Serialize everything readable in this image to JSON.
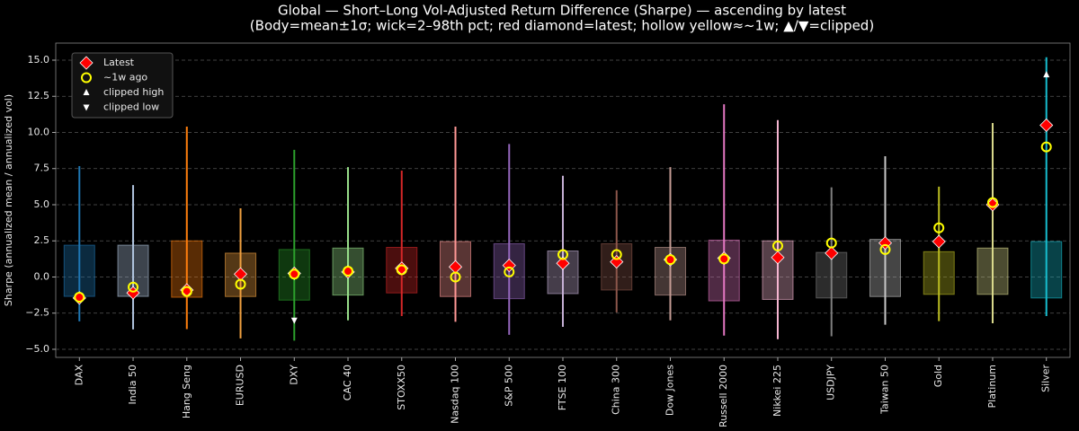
{
  "chart_data": {
    "type": "range_box",
    "title": "Global — Short–Long Vol-Adjusted Return Difference (Sharpe) — ascending by latest",
    "subtitle": "(Body=mean±1σ; wick=2–98th pct; red diamond=latest; hollow yellow≈~1w; ▲/▼=clipped)",
    "y_label": "Sharpe (annualized mean / annualized vol)",
    "categories": [
      "DAX",
      "India 50",
      "Hang Seng",
      "EURUSD",
      "DXY",
      "CAC 40",
      "STOXX50",
      "Nasdaq 100",
      "S&P 500",
      "FTSE 100",
      "China 300",
      "Dow Jones",
      "Russell 2000",
      "Nikkei 225",
      "USDJPY",
      "Taiwan 50",
      "Gold",
      "Platinum",
      "Silver"
    ],
    "colors": [
      "#1f77b4",
      "#b0c4de",
      "#ff7f0e",
      "#f0a040",
      "#2ca02c",
      "#98df8a",
      "#d62728",
      "#ff9896",
      "#9467bd",
      "#c5b0d5",
      "#8c564b",
      "#c49c94",
      "#e377c2",
      "#f7b6d2",
      "#7f7f7f",
      "#c7c7c7",
      "#bcbd22",
      "#dbdb8d",
      "#17becf"
    ],
    "body_low": [
      -1.34,
      -1.34,
      -1.4,
      -1.35,
      -1.6,
      -1.25,
      -1.1,
      -1.35,
      -1.5,
      -1.15,
      -0.9,
      -1.25,
      -1.65,
      -1.55,
      -1.45,
      -1.35,
      -1.2,
      -1.2,
      -1.45
    ],
    "body_high": [
      2.2,
      2.2,
      2.5,
      1.65,
      1.9,
      2.0,
      2.05,
      2.45,
      2.3,
      1.8,
      2.3,
      2.05,
      2.55,
      2.5,
      1.7,
      2.6,
      1.75,
      2.0,
      2.45
    ],
    "wick_low": [
      -3.07,
      -3.63,
      -3.6,
      -4.25,
      -4.4,
      -3.0,
      -2.7,
      -3.1,
      -4.0,
      -3.45,
      -2.45,
      -3.0,
      -4.05,
      -4.3,
      -4.1,
      -3.3,
      -3.05,
      -3.2,
      -2.7
    ],
    "wick_high": [
      7.67,
      6.36,
      10.4,
      4.75,
      8.8,
      7.6,
      7.36,
      10.4,
      9.2,
      7.0,
      6.0,
      7.6,
      11.95,
      10.85,
      6.2,
      8.35,
      6.25,
      10.65,
      15.2
    ],
    "series": [
      {
        "name": "Latest",
        "color": "#ff0000",
        "marker": "diamond",
        "values": [
          -1.45,
          -1.1,
          -0.9,
          0.2,
          0.25,
          0.35,
          0.6,
          0.7,
          0.8,
          0.95,
          1.05,
          1.2,
          1.3,
          1.35,
          1.65,
          2.35,
          2.45,
          5.0,
          10.5
        ]
      },
      {
        "name": "~1w ago",
        "color": "#ffff00",
        "marker": "hollow-circle",
        "values": [
          -1.4,
          -0.7,
          -1.0,
          -0.5,
          0.2,
          0.4,
          0.5,
          0.0,
          0.35,
          1.55,
          1.55,
          1.2,
          1.25,
          2.15,
          2.35,
          1.9,
          3.4,
          5.15,
          9.0
        ]
      },
      {
        "name": "clipped high",
        "color": "#ffffff",
        "marker": "triangle-up",
        "values": [
          null,
          null,
          null,
          null,
          null,
          null,
          null,
          null,
          null,
          null,
          null,
          null,
          null,
          null,
          null,
          null,
          null,
          null,
          14.0
        ]
      },
      {
        "name": "clipped low",
        "color": "#ffffff",
        "marker": "triangle-down",
        "values": [
          null,
          null,
          null,
          null,
          -3.0,
          null,
          null,
          null,
          null,
          null,
          null,
          null,
          null,
          null,
          null,
          null,
          null,
          null,
          null
        ]
      }
    ],
    "ylim": [
      -5.56,
      16.18
    ],
    "yticks": [
      {
        "value": -5,
        "label": "−5.0"
      },
      {
        "value": -2.5,
        "label": "−2.5"
      },
      {
        "value": 0,
        "label": "0.0"
      },
      2.5,
      {
        "value": 5,
        "label": "5.0"
      },
      7.5,
      {
        "value": 10,
        "label": "10.0"
      },
      12.5,
      {
        "value": 15,
        "label": "15.0"
      }
    ],
    "grid": true,
    "legend": "upper left"
  }
}
